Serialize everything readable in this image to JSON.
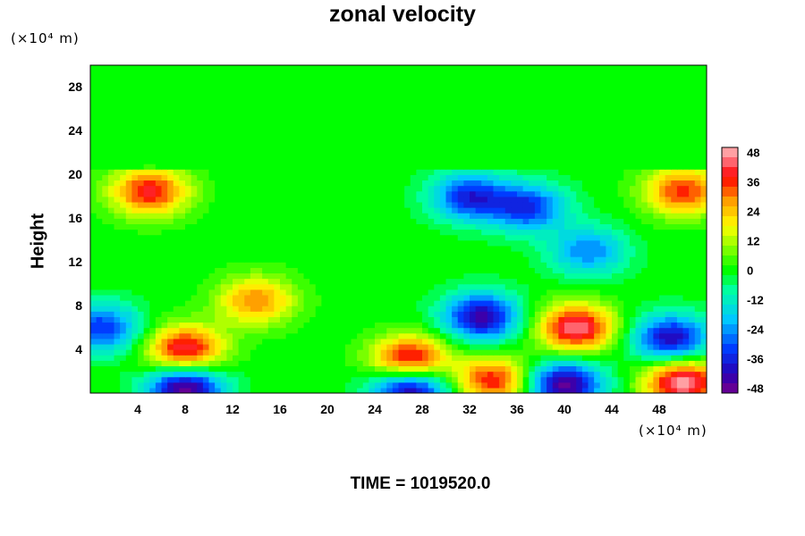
{
  "chart_data": {
    "type": "heatmap",
    "title": "zonal velocity",
    "ylabel": "Height",
    "xlabel": "",
    "x_unit": "(×10⁴ m)",
    "y_unit": "(×10⁴ m)",
    "xlim": [
      0,
      52
    ],
    "ylim": [
      0,
      30
    ],
    "x_ticks": [
      "4",
      "8",
      "12",
      "16",
      "20",
      "24",
      "28",
      "32",
      "36",
      "40",
      "44",
      "48"
    ],
    "x_tick_values": [
      4,
      8,
      12,
      16,
      20,
      24,
      28,
      32,
      36,
      40,
      44,
      48
    ],
    "y_ticks": [
      "4",
      "8",
      "12",
      "16",
      "20",
      "24",
      "28"
    ],
    "y_tick_values": [
      4,
      8,
      12,
      16,
      20,
      24,
      28
    ],
    "colorbar": {
      "min": -50,
      "max": 50,
      "labels": [
        "48",
        "36",
        "24",
        "12",
        "0",
        "-12",
        "-24",
        "-36",
        "-48"
      ],
      "label_values": [
        48,
        36,
        24,
        12,
        0,
        -12,
        -24,
        -36,
        -48
      ]
    },
    "features": [
      {
        "kind": "jet",
        "x": 5,
        "y": 18.5,
        "value": 40
      },
      {
        "kind": "jet",
        "x": 50,
        "y": 18.5,
        "value": 36
      },
      {
        "kind": "jet",
        "x": 32,
        "y": 18,
        "value": -36
      },
      {
        "kind": "jet",
        "x": 37,
        "y": 17,
        "value": -34
      },
      {
        "kind": "jet",
        "x": 42,
        "y": 13,
        "value": -26
      },
      {
        "kind": "jet",
        "x": 33,
        "y": 7,
        "value": -44
      },
      {
        "kind": "jet",
        "x": 49,
        "y": 5,
        "value": -42
      },
      {
        "kind": "jet",
        "x": 8,
        "y": 4,
        "value": 44
      },
      {
        "kind": "jet",
        "x": 27,
        "y": 3,
        "value": 48
      },
      {
        "kind": "jet",
        "x": 41,
        "y": 6,
        "value": 46
      },
      {
        "kind": "jet",
        "x": 14,
        "y": 8.5,
        "value": 30
      },
      {
        "kind": "jet",
        "x": 50,
        "y": 1,
        "value": 50
      },
      {
        "kind": "jet",
        "x": 8,
        "y": 0.5,
        "value": -50
      },
      {
        "kind": "jet",
        "x": 27,
        "y": 0.5,
        "value": -50
      },
      {
        "kind": "jet",
        "x": 40,
        "y": 0.8,
        "value": -48
      },
      {
        "kind": "jet",
        "x": 34,
        "y": 1.2,
        "value": 38
      },
      {
        "kind": "jet",
        "x": 1,
        "y": 6,
        "value": -34
      }
    ]
  },
  "footer": {
    "time_label": "TIME = 1019520.0"
  }
}
